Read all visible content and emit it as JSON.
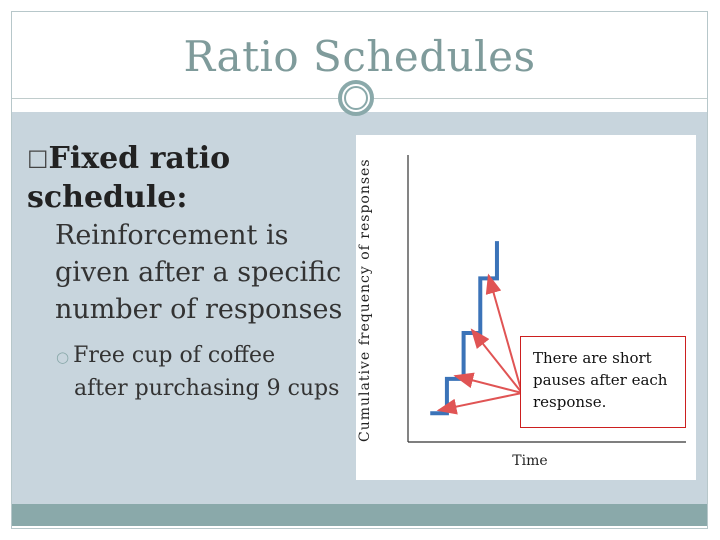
{
  "slide": {
    "title": "Ratio Schedules",
    "bullet_glyph": "☐",
    "main_heading": "Fixed ratio schedule:",
    "main_text": "Reinforcement is given after a specific number of responses",
    "sub_marker": "○",
    "sub_text_line1": "Free cup of coffee",
    "sub_text_rest": "after purchasing 9 cups"
  },
  "chart_data": {
    "type": "line",
    "ylabel": "Cumulative frequency of responses",
    "xlabel": "Time",
    "annotation": "There are short pauses after each response.",
    "series": [
      {
        "style": "staircase",
        "color": "#3b73b8",
        "points": [
          [
            0.08,
            0.1
          ],
          [
            0.14,
            0.1
          ],
          [
            0.14,
            0.22
          ],
          [
            0.2,
            0.22
          ],
          [
            0.2,
            0.38
          ],
          [
            0.26,
            0.38
          ],
          [
            0.26,
            0.57
          ],
          [
            0.32,
            0.57
          ],
          [
            0.32,
            0.7
          ]
        ]
      }
    ],
    "arrows_to_steps": 4,
    "arrow_color": "#e05454"
  },
  "colors": {
    "title": "#7f9b9b",
    "accent": "#8aa9aa",
    "body_bg": "#c8d5dd",
    "note_border": "#cc1f1f"
  }
}
